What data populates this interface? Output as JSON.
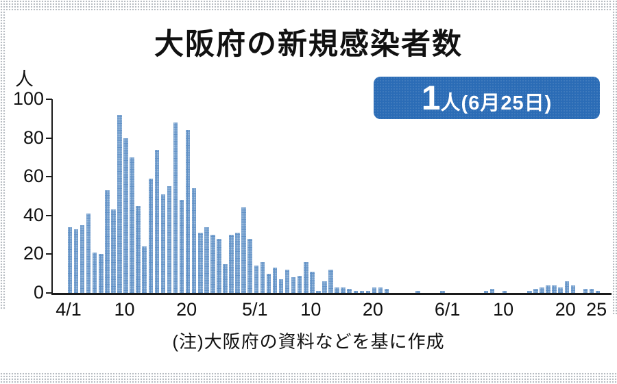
{
  "title": "大阪府の新規感染者数",
  "badge": {
    "count": "1",
    "label": "人(6月25日)",
    "bg_color": "#2b6cb6",
    "text_color": "#ffffff"
  },
  "note": "(注)大阪府の資料などを基に作成",
  "chart_data": {
    "type": "bar",
    "title": "大阪府の新規感染者数",
    "xlabel": "",
    "ylabel": "人",
    "ylim": [
      0,
      100
    ],
    "yticks": [
      0,
      20,
      40,
      60,
      80,
      100
    ],
    "grid": false,
    "legend_position": "none",
    "bar_color": "#6292c7",
    "annotation": "1人(6月25日)",
    "x_tick_labels": [
      "4/1",
      "10",
      "20",
      "5/1",
      "10",
      "20",
      "6/1",
      "10",
      "20",
      "25"
    ],
    "x_tick_indices": [
      0,
      9,
      19,
      30,
      39,
      49,
      61,
      70,
      80,
      85
    ],
    "dates": [
      "4/1",
      "4/2",
      "4/3",
      "4/4",
      "4/5",
      "4/6",
      "4/7",
      "4/8",
      "4/9",
      "4/10",
      "4/11",
      "4/12",
      "4/13",
      "4/14",
      "4/15",
      "4/16",
      "4/17",
      "4/18",
      "4/19",
      "4/20",
      "4/21",
      "4/22",
      "4/23",
      "4/24",
      "4/25",
      "4/26",
      "4/27",
      "4/28",
      "4/29",
      "4/30",
      "5/1",
      "5/2",
      "5/3",
      "5/4",
      "5/5",
      "5/6",
      "5/7",
      "5/8",
      "5/9",
      "5/10",
      "5/11",
      "5/12",
      "5/13",
      "5/14",
      "5/15",
      "5/16",
      "5/17",
      "5/18",
      "5/19",
      "5/20",
      "5/21",
      "5/22",
      "5/23",
      "5/24",
      "5/25",
      "5/26",
      "5/27",
      "5/28",
      "5/29",
      "5/30",
      "5/31",
      "6/1",
      "6/2",
      "6/3",
      "6/4",
      "6/5",
      "6/6",
      "6/7",
      "6/8",
      "6/9",
      "6/10",
      "6/11",
      "6/12",
      "6/13",
      "6/14",
      "6/15",
      "6/16",
      "6/17",
      "6/18",
      "6/19",
      "6/20",
      "6/21",
      "6/22",
      "6/23",
      "6/24",
      "6/25"
    ],
    "values": [
      34,
      33,
      35,
      41,
      21,
      20,
      53,
      43,
      92,
      80,
      70,
      45,
      24,
      59,
      74,
      51,
      55,
      88,
      48,
      84,
      54,
      31,
      34,
      30,
      28,
      15,
      30,
      31,
      44,
      28,
      14,
      16,
      10,
      13,
      7,
      12,
      8,
      9,
      16,
      11,
      1,
      6,
      12,
      3,
      3,
      2,
      1,
      1,
      1,
      3,
      3,
      2,
      0,
      0,
      0,
      0,
      1,
      0,
      0,
      0,
      1,
      0,
      0,
      0,
      0,
      0,
      0,
      1,
      2,
      0,
      1,
      0,
      0,
      0,
      1,
      2,
      3,
      4,
      4,
      3,
      6,
      4,
      0,
      2,
      2,
      1
    ]
  }
}
